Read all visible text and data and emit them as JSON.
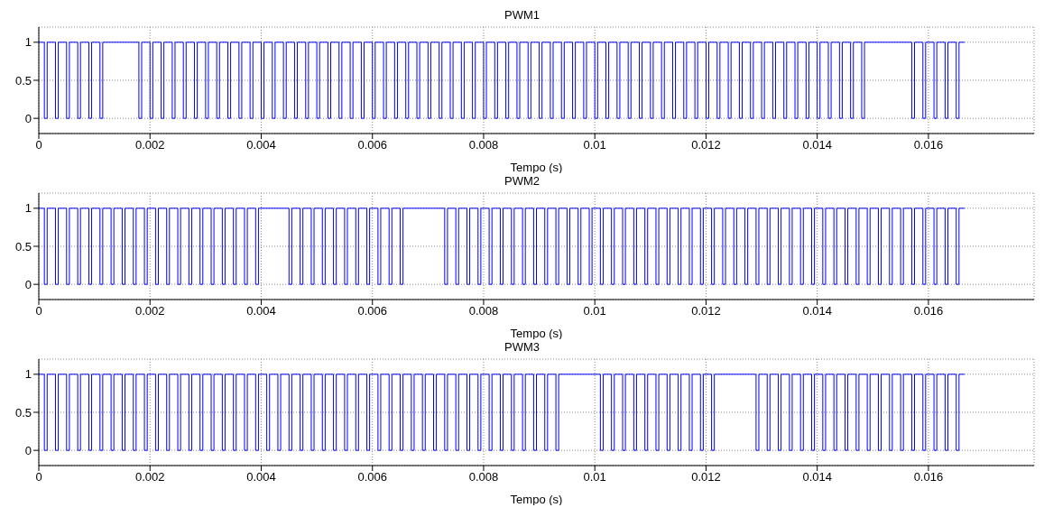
{
  "chart_data": [
    {
      "type": "step",
      "title": "PWM1",
      "xlabel": "Tempo (s)",
      "color": "#0000ff",
      "xlim": [
        0,
        0.0179
      ],
      "xticks": [
        0,
        0.002,
        0.004,
        0.006,
        0.008,
        0.01,
        0.012,
        0.014,
        0.016
      ],
      "ylim": [
        -0.2,
        1.2
      ],
      "yticks": [
        0,
        0.5,
        1
      ],
      "grid": true,
      "x": [
        0,
        0.0001,
        0.00015,
        0.0003,
        0.00035,
        0.0005,
        0.00055,
        0.0007,
        0.00075,
        0.0009,
        0.00095,
        0.0011,
        0.00115,
        0.0018,
        0.00185,
        0.002,
        0.00205,
        0.0022,
        0.00225,
        0.0024,
        0.00245,
        0.0026,
        0.00265,
        0.0028,
        0.00285,
        0.003,
        0.00305,
        0.0032,
        0.00325,
        0.0034,
        0.00345,
        0.0036,
        0.00365,
        0.0038,
        0.00385,
        0.004,
        0.00405,
        0.0042,
        0.00425,
        0.0044,
        0.00445,
        0.0046,
        0.00465,
        0.0048,
        0.00485,
        0.005,
        0.00505,
        0.0052,
        0.00525,
        0.0054,
        0.00545,
        0.0056,
        0.00565,
        0.0058,
        0.00585,
        0.006,
        0.00605,
        0.0062,
        0.00625,
        0.0064,
        0.00645,
        0.0066,
        0.00665,
        0.0068,
        0.00685,
        0.007,
        0.00705,
        0.0072,
        0.00725,
        0.0074,
        0.00745,
        0.0076,
        0.00765,
        0.0078,
        0.00785,
        0.008,
        0.00805,
        0.0082,
        0.00825,
        0.0084,
        0.00845,
        0.0086,
        0.00865,
        0.0088,
        0.00885,
        0.009,
        0.00905,
        0.0092,
        0.00925,
        0.0094,
        0.00945,
        0.0096,
        0.00965,
        0.0098,
        0.00985,
        0.01,
        0.01005,
        0.0102,
        0.01025,
        0.0104,
        0.01045,
        0.0106,
        0.01065,
        0.0108,
        0.01085,
        0.011,
        0.01105,
        0.0112,
        0.01125,
        0.0114,
        0.01145,
        0.0116,
        0.01165,
        0.0118,
        0.01185,
        0.012,
        0.01205,
        0.0122,
        0.01225,
        0.0124,
        0.01245,
        0.0126,
        0.01265,
        0.0128,
        0.01285,
        0.013,
        0.01305,
        0.0132,
        0.01325,
        0.0134,
        0.01345,
        0.0136,
        0.01365,
        0.0138,
        0.01385,
        0.014,
        0.01405,
        0.0142,
        0.01425,
        0.0144,
        0.01445,
        0.0146,
        0.01465,
        0.0148,
        0.01485,
        0.0157,
        0.01575,
        0.0159,
        0.01595,
        0.0161,
        0.01615,
        0.0163,
        0.01635,
        0.0165,
        0.01655,
        0.01665
      ],
      "values": [
        1,
        0,
        1,
        0,
        1,
        0,
        1,
        0,
        1,
        0,
        1,
        0,
        1,
        0,
        1,
        0,
        1,
        0,
        1,
        0,
        1,
        0,
        1,
        0,
        1,
        0,
        1,
        0,
        1,
        0,
        1,
        0,
        1,
        0,
        1,
        0,
        1,
        0,
        1,
        0,
        1,
        0,
        1,
        0,
        1,
        0,
        1,
        0,
        1,
        0,
        1,
        0,
        1,
        0,
        1,
        0,
        1,
        0,
        1,
        0,
        1,
        0,
        1,
        0,
        1,
        0,
        1,
        0,
        1,
        0,
        1,
        0,
        1,
        0,
        1,
        0,
        1,
        0,
        1,
        0,
        1,
        0,
        1,
        0,
        1,
        0,
        1,
        0,
        1,
        0,
        1,
        0,
        1,
        0,
        1,
        0,
        1,
        0,
        1,
        0,
        1,
        0,
        1,
        0,
        1,
        0,
        1,
        0,
        1,
        0,
        1,
        0,
        1,
        0,
        1,
        0,
        1,
        0,
        1,
        0,
        1,
        0,
        1,
        0,
        1,
        0,
        1,
        0,
        1,
        0,
        1,
        0,
        1,
        0,
        1,
        0,
        1,
        0,
        1,
        0,
        1,
        0,
        1,
        0,
        1,
        0,
        1,
        0,
        1,
        0,
        1,
        0,
        1,
        0,
        1,
        1
      ]
    },
    {
      "type": "step",
      "title": "PWM2",
      "xlabel": "Tempo (s)",
      "color": "#0000ff",
      "xlim": [
        0,
        0.0179
      ],
      "xticks": [
        0,
        0.002,
        0.004,
        0.006,
        0.008,
        0.01,
        0.012,
        0.014,
        0.016
      ],
      "ylim": [
        -0.2,
        1.2
      ],
      "yticks": [
        0,
        0.5,
        1
      ],
      "grid": true,
      "x": [
        0,
        0.0001,
        0.00015,
        0.0003,
        0.00035,
        0.0005,
        0.00055,
        0.0007,
        0.00075,
        0.0009,
        0.00095,
        0.0011,
        0.00115,
        0.0013,
        0.00135,
        0.0015,
        0.00155,
        0.0017,
        0.00175,
        0.0019,
        0.00195,
        0.0021,
        0.00215,
        0.0023,
        0.00235,
        0.0025,
        0.00255,
        0.0027,
        0.00275,
        0.0029,
        0.00295,
        0.0031,
        0.00315,
        0.0033,
        0.00335,
        0.0035,
        0.00355,
        0.0037,
        0.00375,
        0.0039,
        0.00395,
        0.0045,
        0.00455,
        0.0047,
        0.00475,
        0.0049,
        0.00495,
        0.0051,
        0.00515,
        0.0053,
        0.00535,
        0.0055,
        0.00555,
        0.0057,
        0.00575,
        0.0059,
        0.00595,
        0.0061,
        0.00615,
        0.0063,
        0.00635,
        0.0065,
        0.00655,
        0.0073,
        0.00735,
        0.0075,
        0.00755,
        0.0077,
        0.00775,
        0.0079,
        0.00795,
        0.0081,
        0.00815,
        0.0083,
        0.00835,
        0.0085,
        0.00855,
        0.0087,
        0.00875,
        0.0089,
        0.00895,
        0.0091,
        0.00915,
        0.0093,
        0.00935,
        0.0095,
        0.00955,
        0.0097,
        0.00975,
        0.0099,
        0.00995,
        0.0101,
        0.01015,
        0.0103,
        0.01035,
        0.0105,
        0.01055,
        0.0107,
        0.01075,
        0.0109,
        0.01095,
        0.0111,
        0.01115,
        0.0113,
        0.01135,
        0.0115,
        0.01155,
        0.0117,
        0.01175,
        0.0119,
        0.01195,
        0.0121,
        0.01215,
        0.0123,
        0.01235,
        0.0125,
        0.01255,
        0.0127,
        0.01275,
        0.0129,
        0.01295,
        0.0131,
        0.01315,
        0.0133,
        0.01335,
        0.0135,
        0.01355,
        0.0137,
        0.01375,
        0.0139,
        0.01395,
        0.0141,
        0.01415,
        0.0143,
        0.01435,
        0.0145,
        0.01455,
        0.0147,
        0.01475,
        0.0149,
        0.01495,
        0.0151,
        0.01515,
        0.0153,
        0.01535,
        0.0155,
        0.01555,
        0.0157,
        0.01575,
        0.0159,
        0.01595,
        0.0161,
        0.01615,
        0.0163,
        0.01635,
        0.0165,
        0.01655,
        0.01665
      ],
      "values": [
        1,
        0,
        1,
        0,
        1,
        0,
        1,
        0,
        1,
        0,
        1,
        0,
        1,
        0,
        1,
        0,
        1,
        0,
        1,
        0,
        1,
        0,
        1,
        0,
        1,
        0,
        1,
        0,
        1,
        0,
        1,
        0,
        1,
        0,
        1,
        0,
        1,
        0,
        1,
        0,
        1,
        0,
        1,
        0,
        1,
        0,
        1,
        0,
        1,
        0,
        1,
        0,
        1,
        0,
        1,
        0,
        1,
        0,
        1,
        0,
        1,
        0,
        1,
        0,
        1,
        0,
        1,
        0,
        1,
        0,
        1,
        0,
        1,
        0,
        1,
        0,
        1,
        0,
        1,
        0,
        1,
        0,
        1,
        0,
        1,
        0,
        1,
        0,
        1,
        0,
        1,
        0,
        1,
        0,
        1,
        0,
        1,
        0,
        1,
        0,
        1,
        0,
        1,
        0,
        1,
        0,
        1,
        0,
        1,
        0,
        1,
        0,
        1,
        0,
        1,
        0,
        1,
        0,
        1,
        0,
        1,
        0,
        1,
        0,
        1,
        0,
        1,
        0,
        1,
        0,
        1,
        0,
        1,
        0,
        1,
        0,
        1,
        0,
        1,
        0,
        1,
        0,
        1,
        0,
        1,
        0,
        1,
        0,
        1,
        0,
        1,
        0,
        1,
        0,
        1,
        0,
        1,
        1
      ]
    },
    {
      "type": "step",
      "title": "PWM3",
      "xlabel": "Tempo (s)",
      "color": "#0000ff",
      "xlim": [
        0,
        0.0179
      ],
      "xticks": [
        0,
        0.002,
        0.004,
        0.006,
        0.008,
        0.01,
        0.012,
        0.014,
        0.016
      ],
      "ylim": [
        -0.2,
        1.2
      ],
      "yticks": [
        0,
        0.5,
        1
      ],
      "grid": true,
      "x": [
        0,
        0.0001,
        0.00015,
        0.0003,
        0.00035,
        0.0005,
        0.00055,
        0.0007,
        0.00075,
        0.0009,
        0.00095,
        0.0011,
        0.00115,
        0.0013,
        0.00135,
        0.0015,
        0.00155,
        0.0017,
        0.00175,
        0.0019,
        0.00195,
        0.0021,
        0.00215,
        0.0023,
        0.00235,
        0.0025,
        0.00255,
        0.0027,
        0.00275,
        0.0029,
        0.00295,
        0.0031,
        0.00315,
        0.0033,
        0.00335,
        0.0035,
        0.00355,
        0.0037,
        0.00375,
        0.0039,
        0.00395,
        0.0041,
        0.00415,
        0.0043,
        0.00435,
        0.0045,
        0.00455,
        0.0047,
        0.00475,
        0.0049,
        0.00495,
        0.0051,
        0.00515,
        0.0053,
        0.00535,
        0.0055,
        0.00555,
        0.0057,
        0.00575,
        0.0059,
        0.00595,
        0.0061,
        0.00615,
        0.0063,
        0.00635,
        0.0065,
        0.00655,
        0.0067,
        0.00675,
        0.0069,
        0.00695,
        0.0071,
        0.00715,
        0.0073,
        0.00735,
        0.0075,
        0.00755,
        0.0077,
        0.00775,
        0.0079,
        0.00795,
        0.0081,
        0.00815,
        0.0083,
        0.00835,
        0.0085,
        0.00855,
        0.0087,
        0.00875,
        0.0089,
        0.00895,
        0.0091,
        0.00915,
        0.0093,
        0.00935,
        0.0101,
        0.01015,
        0.0103,
        0.01035,
        0.0105,
        0.01055,
        0.0107,
        0.01075,
        0.0109,
        0.01095,
        0.0111,
        0.01115,
        0.0113,
        0.01135,
        0.0115,
        0.01155,
        0.0117,
        0.01175,
        0.0119,
        0.01195,
        0.0121,
        0.01215,
        0.0129,
        0.01295,
        0.0131,
        0.01315,
        0.0133,
        0.01335,
        0.0135,
        0.01355,
        0.0137,
        0.01375,
        0.0139,
        0.01395,
        0.0141,
        0.01415,
        0.0143,
        0.01435,
        0.0145,
        0.01455,
        0.0147,
        0.01475,
        0.0149,
        0.01495,
        0.0151,
        0.01515,
        0.0153,
        0.01535,
        0.0155,
        0.01555,
        0.0157,
        0.01575,
        0.0159,
        0.01595,
        0.0161,
        0.01615,
        0.0163,
        0.01635,
        0.0165,
        0.01655,
        0.01665
      ],
      "values": [
        1,
        0,
        1,
        0,
        1,
        0,
        1,
        0,
        1,
        0,
        1,
        0,
        1,
        0,
        1,
        0,
        1,
        0,
        1,
        0,
        1,
        0,
        1,
        0,
        1,
        0,
        1,
        0,
        1,
        0,
        1,
        0,
        1,
        0,
        1,
        0,
        1,
        0,
        1,
        0,
        1,
        0,
        1,
        0,
        1,
        0,
        1,
        0,
        1,
        0,
        1,
        0,
        1,
        0,
        1,
        0,
        1,
        0,
        1,
        0,
        1,
        0,
        1,
        0,
        1,
        0,
        1,
        0,
        1,
        0,
        1,
        0,
        1,
        0,
        1,
        0,
        1,
        0,
        1,
        0,
        1,
        0,
        1,
        0,
        1,
        0,
        1,
        0,
        1,
        0,
        1,
        0,
        1,
        0,
        1,
        0,
        1,
        0,
        1,
        0,
        1,
        0,
        1,
        0,
        1,
        0,
        1,
        0,
        1,
        0,
        1,
        0,
        1,
        0,
        1,
        0,
        1,
        0,
        1,
        0,
        1,
        0,
        1,
        0,
        1,
        0,
        1,
        0,
        1,
        0,
        1,
        0,
        1,
        0,
        1,
        0,
        1,
        0,
        1,
        0,
        1,
        0,
        1,
        0,
        1,
        0,
        1,
        0,
        1,
        0,
        1,
        0,
        1,
        0,
        1,
        1
      ]
    }
  ]
}
